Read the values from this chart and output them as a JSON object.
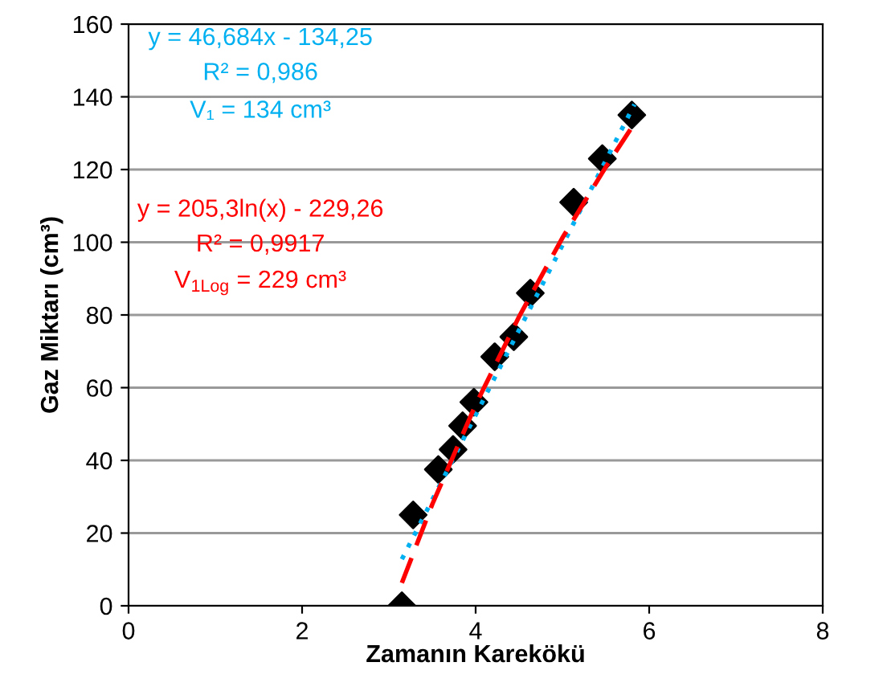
{
  "chart_data": {
    "type": "scatter",
    "xlabel": "Zamanın Karekökü",
    "ylabel": "Gaz Miktarı (cm³)",
    "xlim": [
      0,
      8
    ],
    "xticks": [
      0,
      2,
      4,
      6,
      8
    ],
    "ylim": [
      0,
      160
    ],
    "yticks": [
      0,
      20,
      40,
      60,
      80,
      100,
      120,
      140,
      160
    ],
    "grid": "y",
    "legend": false,
    "series": [
      {
        "color": "#000000",
        "marker": "diamond",
        "x": [
          3.15,
          3.28,
          3.57,
          3.74,
          3.85,
          3.98,
          4.22,
          4.44,
          4.63,
          5.13,
          5.46,
          5.8
        ],
        "values": [
          0,
          25,
          37.5,
          43,
          49.5,
          56,
          68.5,
          74,
          86,
          111,
          123,
          135
        ]
      },
      {
        "type": "line",
        "color": "#00b0f0",
        "line_style": "dotted",
        "x": [
          3.15,
          5.83
        ],
        "values": [
          12.8,
          137.9
        ]
      },
      {
        "type": "line",
        "color": "#ff0000",
        "line_style": "dashed",
        "x": [
          3.15,
          3.5,
          4.0,
          4.5,
          5.0,
          5.5,
          5.83
        ],
        "values": [
          6.3,
          27.9,
          55.3,
          79.5,
          101.2,
          120.7,
          132.7
        ]
      }
    ],
    "annotations": [
      "y = 46,684x - 134,25",
      "R² = 0,986",
      "V₁ = 134 cm³",
      "y = 205,3ln(x) - 229,26",
      "R² = 0,9917",
      "V$_{1Log}$ = 229 cm³"
    ]
  }
}
